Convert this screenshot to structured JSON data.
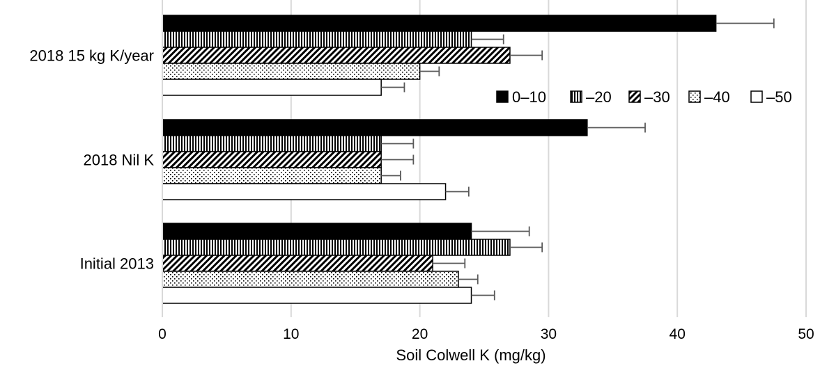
{
  "chart_data": {
    "type": "bar",
    "orientation": "horizontal",
    "xlabel": "Soil Colwell K (mg/kg)",
    "ylabel": "",
    "xlim": [
      0,
      50
    ],
    "x_ticks": [
      "0",
      "10",
      "20",
      "30",
      "40",
      "50"
    ],
    "grid": "vertical",
    "legend_position": "right",
    "categories": [
      "2018 15 kg K/year",
      "2018 Nil K",
      "Initial 2013"
    ],
    "series": [
      {
        "name": "0–10",
        "pattern": "solid",
        "fill": "#000000",
        "values": [
          43,
          33,
          24
        ],
        "errors": [
          4.5,
          4.5,
          4.5
        ]
      },
      {
        "name": "–20",
        "pattern": "vertical-lines",
        "fill": "#000000",
        "values": [
          24,
          17,
          27
        ],
        "errors": [
          2.5,
          2.5,
          2.5
        ]
      },
      {
        "name": "–30",
        "pattern": "diagonal-lines",
        "fill": "#000000",
        "values": [
          27,
          17,
          21
        ],
        "errors": [
          2.5,
          2.5,
          2.5
        ]
      },
      {
        "name": "–40",
        "pattern": "dots",
        "fill": "#000000",
        "values": [
          20,
          17,
          23
        ],
        "errors": [
          1.5,
          1.5,
          1.5
        ]
      },
      {
        "name": "–50",
        "pattern": "none",
        "fill": "#ffffff",
        "values": [
          17,
          22,
          24
        ],
        "errors": [
          1.8,
          1.8,
          1.8
        ]
      }
    ]
  }
}
